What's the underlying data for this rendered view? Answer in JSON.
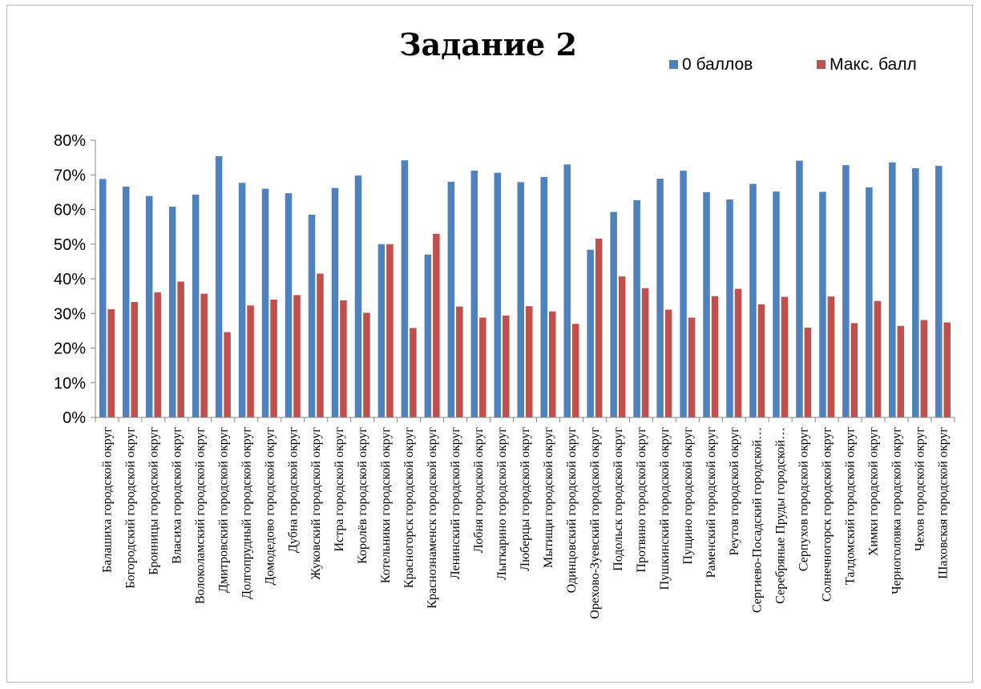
{
  "chart_data": {
    "type": "bar",
    "title": "Задание 2",
    "xlabel": "",
    "ylabel": "",
    "ylim": [
      0,
      80
    ],
    "yticks": [
      "0%",
      "10%",
      "20%",
      "30%",
      "40%",
      "50%",
      "60%",
      "70%",
      "80%"
    ],
    "legend_position": "top-right",
    "grid": false,
    "categories": [
      "Балашиха городской округ",
      "Богородский городской округ",
      "Бронницы городской округ",
      "Власиха городской округ",
      "Волоколамский городской округ",
      "Дмитровский городской округ",
      "Долгопрудный городской округ",
      "Домодедово городской округ",
      "Дубна городской округ",
      "Жуковский городской округ",
      "Истра городской округ",
      "Королёв городской округ",
      "Котельники городской округ",
      "Красногорск городской округ",
      "Краснознаменск городской округ",
      "Ленинский городской округ",
      "Лобня городской округ",
      "Лыткарино городской округ",
      "Люберцы городской округ",
      "Мытищи городской округ",
      "Одинцовский городской округ",
      "Орехово-Зуевский городской округ",
      "Подольск городской округ",
      "Протвино городской округ",
      "Пушкинский городской округ",
      "Пущино городской округ",
      "Раменский городской округ",
      "Реутов городской округ",
      "Сергиево-Посадский городской…",
      "Серебряные Пруды городской…",
      "Серпухов городской округ",
      "Солнечногорск городской округ",
      "Талдомский городской округ",
      "Химки городской округ",
      "Черноголовка городской округ",
      "Чехов городской округ",
      "Шаховская городской округ"
    ],
    "series": [
      {
        "name": "0 баллов",
        "color": "#4f81bd",
        "values": [
          68.8,
          66.6,
          63.9,
          60.8,
          64.3,
          75.4,
          67.7,
          66.0,
          64.7,
          58.5,
          66.2,
          69.8,
          50.0,
          74.2,
          47.0,
          68.0,
          71.2,
          70.6,
          67.9,
          69.4,
          73.0,
          48.4,
          59.3,
          62.7,
          68.9,
          71.2,
          65.0,
          62.9,
          67.4,
          65.2,
          74.1,
          65.1,
          72.8,
          66.4,
          73.6,
          71.9,
          72.6
        ]
      },
      {
        "name": "Макс. балл",
        "color": "#c0504d",
        "values": [
          31.2,
          33.3,
          36.1,
          39.2,
          35.7,
          24.6,
          32.3,
          34.0,
          35.3,
          41.5,
          33.8,
          30.2,
          50.0,
          25.8,
          53.0,
          32.0,
          28.8,
          29.4,
          32.1,
          30.6,
          27.0,
          51.6,
          40.7,
          37.3,
          31.1,
          28.8,
          35.0,
          37.1,
          32.6,
          34.8,
          25.9,
          34.9,
          27.2,
          33.6,
          26.4,
          28.1,
          27.4
        ]
      }
    ]
  }
}
